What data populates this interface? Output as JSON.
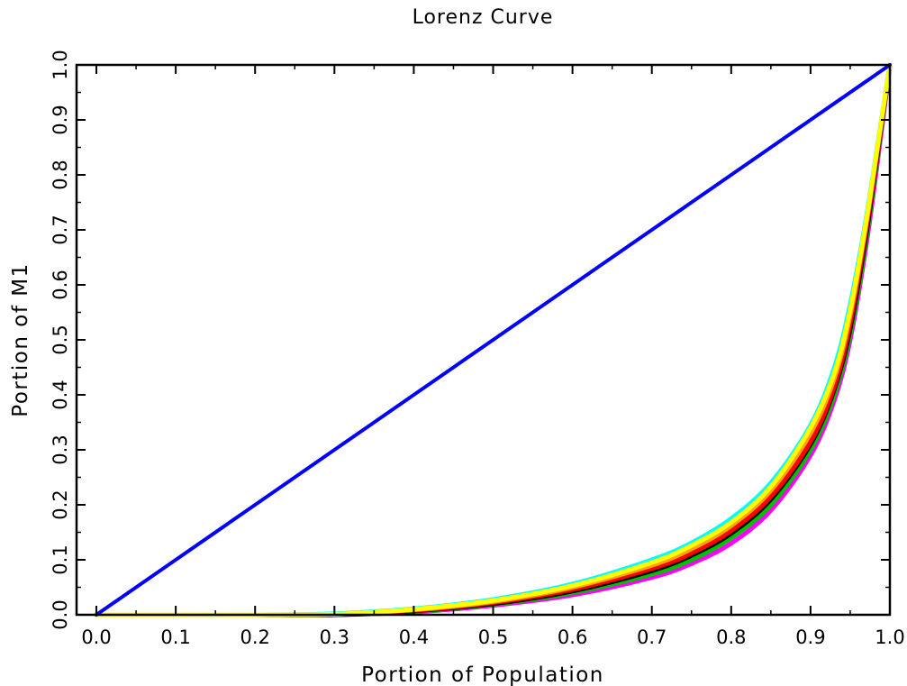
{
  "chart_data": {
    "type": "line",
    "title": "Lorenz Curve",
    "xlabel": "Portion of Population",
    "ylabel": "Portion of M1",
    "xlim": [
      -0.025,
      1.0
    ],
    "ylim": [
      0.0,
      1.0
    ],
    "x_ticks": [
      0.0,
      0.1,
      0.2,
      0.3,
      0.4,
      0.5,
      0.6,
      0.7,
      0.8,
      0.9,
      1.0
    ],
    "x_tick_labels": [
      "0.0",
      "0.1",
      "0.2",
      "0.3",
      "0.4",
      "0.5",
      "0.6",
      "0.7",
      "0.8",
      "0.9",
      "1.0"
    ],
    "y_ticks": [
      0.0,
      0.1,
      0.2,
      0.3,
      0.4,
      0.5,
      0.6,
      0.7,
      0.8,
      0.9,
      1.0
    ],
    "y_tick_labels": [
      "0.0",
      "0.1",
      "0.2",
      "0.3",
      "0.4",
      "0.5",
      "0.6",
      "0.7",
      "0.8",
      "0.9",
      "1.0"
    ],
    "grid": false,
    "legend": "none",
    "x": [
      0.0,
      0.1,
      0.2,
      0.3,
      0.4,
      0.5,
      0.6,
      0.7,
      0.75,
      0.8,
      0.85,
      0.9,
      0.93,
      0.95,
      0.97,
      0.985,
      1.0
    ],
    "series": [
      {
        "color": "#0000ff",
        "values": [
          0.0,
          0.1,
          0.2,
          0.3,
          0.4,
          0.5,
          0.6,
          0.7,
          0.75,
          0.8,
          0.85,
          0.9,
          0.93,
          0.95,
          0.97,
          0.985,
          1.0
        ]
      },
      {
        "color": "#ff00ff",
        "values": [
          0.0,
          0.0,
          0.0,
          0.0,
          0.005,
          0.017,
          0.036,
          0.068,
          0.093,
          0.13,
          0.19,
          0.29,
          0.39,
          0.5,
          0.67,
          0.83,
          1.0
        ]
      },
      {
        "color": "#00c000",
        "values": [
          0.0,
          0.0,
          0.0,
          0.0,
          0.006,
          0.019,
          0.04,
          0.074,
          0.1,
          0.14,
          0.2,
          0.3,
          0.4,
          0.51,
          0.68,
          0.84,
          1.0
        ]
      },
      {
        "color": "#000000",
        "values": [
          0.0,
          0.0,
          0.0,
          0.0,
          0.007,
          0.02,
          0.043,
          0.08,
          0.108,
          0.148,
          0.21,
          0.31,
          0.41,
          0.52,
          0.69,
          0.845,
          1.0
        ]
      },
      {
        "color": "#ff0000",
        "values": [
          0.0,
          0.0,
          0.0,
          0.001,
          0.008,
          0.022,
          0.046,
          0.084,
          0.112,
          0.153,
          0.215,
          0.315,
          0.415,
          0.53,
          0.7,
          0.85,
          1.0
        ]
      },
      {
        "color": "#ffa500",
        "values": [
          0.0,
          0.0,
          0.0,
          0.001,
          0.009,
          0.024,
          0.05,
          0.09,
          0.12,
          0.162,
          0.226,
          0.33,
          0.43,
          0.545,
          0.71,
          0.855,
          1.0
        ]
      },
      {
        "color": "#00ffff",
        "values": [
          0.0,
          0.0,
          0.0,
          0.002,
          0.011,
          0.028,
          0.056,
          0.1,
          0.131,
          0.175,
          0.24,
          0.345,
          0.45,
          0.565,
          0.72,
          0.86,
          1.0
        ]
      },
      {
        "color": "#ffff00",
        "values": [
          0.0,
          0.0,
          0.0,
          0.001,
          0.01,
          0.026,
          0.053,
          0.095,
          0.126,
          0.168,
          0.233,
          0.34,
          0.44,
          0.555,
          0.715,
          0.858,
          1.0
        ]
      }
    ]
  }
}
